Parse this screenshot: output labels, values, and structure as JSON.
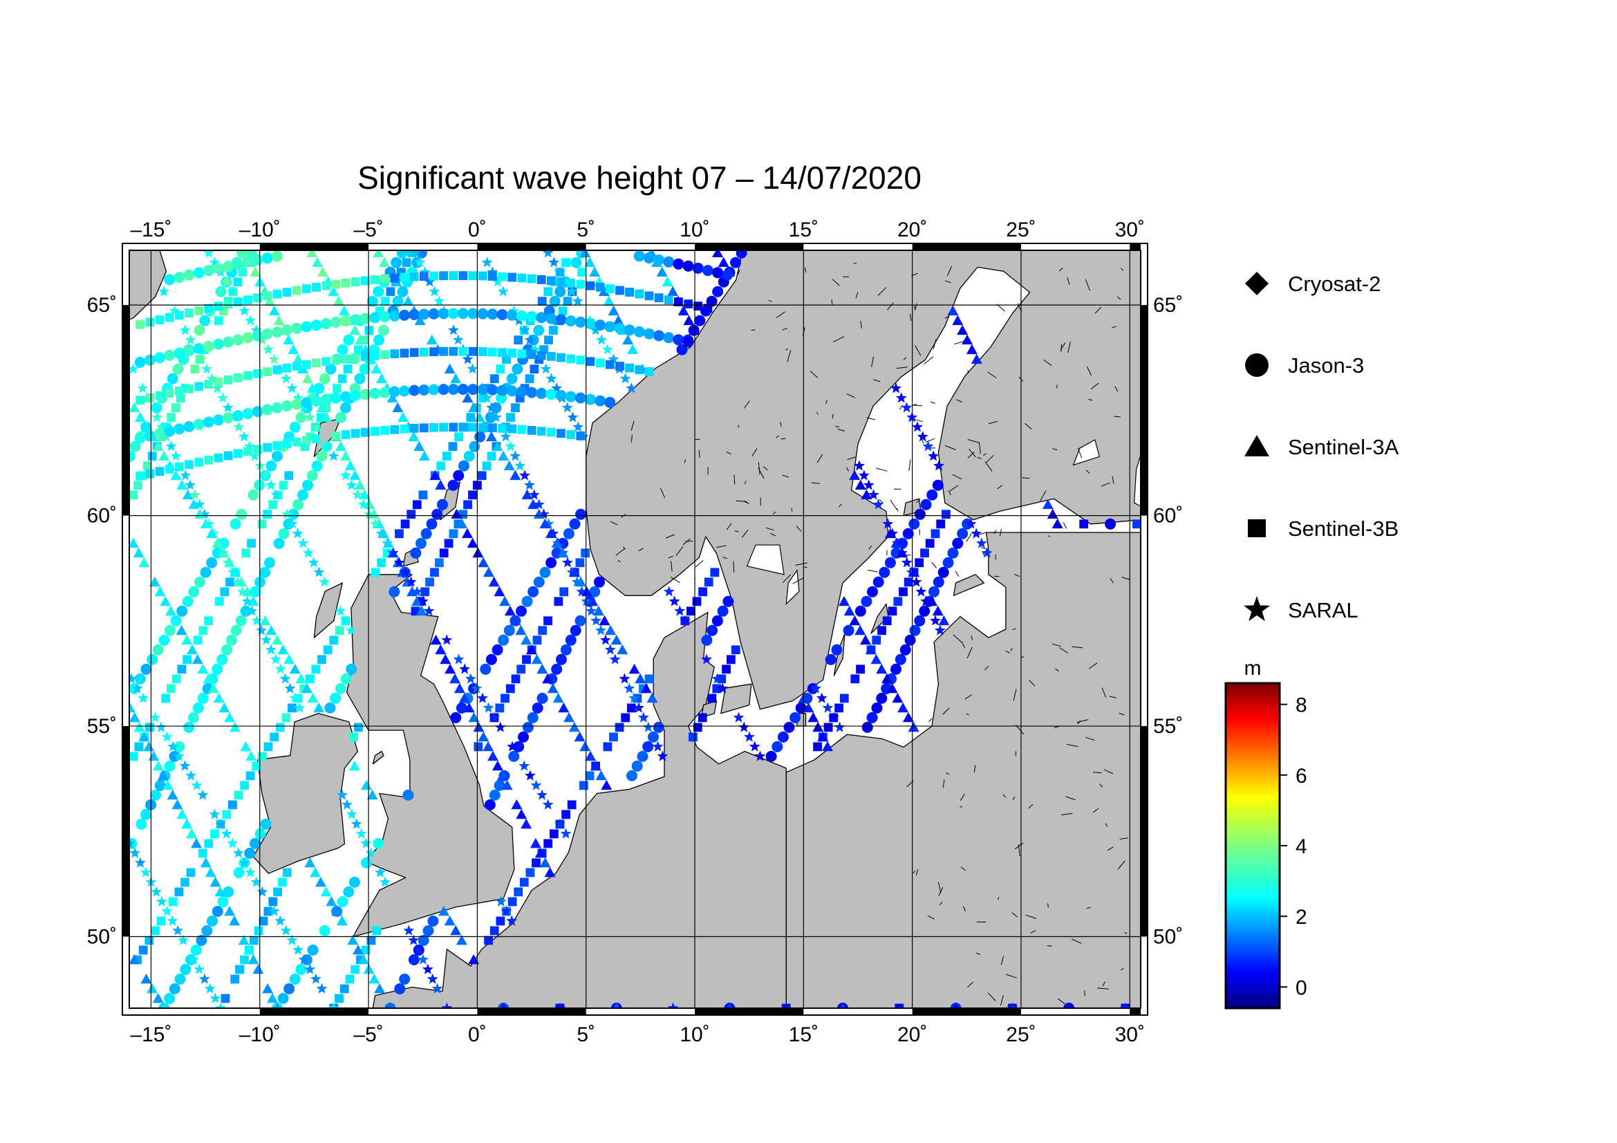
{
  "title": "Significant wave height 07 – 14/07/2020",
  "colors": {
    "land": "#bebebe",
    "sea": "#ffffff",
    "grid": "#000000"
  },
  "map": {
    "lon_range": [
      -16,
      30.5
    ],
    "lat_range": [
      48.3,
      66.3
    ],
    "lon_ticks": [
      -15,
      -10,
      -5,
      0,
      5,
      10,
      15,
      20,
      25,
      30
    ],
    "lat_ticks": [
      50,
      55,
      60,
      65
    ],
    "lon_labels": [
      "–15˚",
      "–10˚",
      "–5˚",
      "0˚",
      "5˚",
      "10˚",
      "15˚",
      "20˚",
      "25˚",
      "30˚"
    ],
    "lat_labels": [
      "50˚",
      "55˚",
      "60˚",
      "65˚"
    ]
  },
  "legend": [
    {
      "label": "Cryosat-2",
      "symbol": "diamond-icon"
    },
    {
      "label": "Jason-3",
      "symbol": "circle-icon"
    },
    {
      "label": "Sentinel-3A",
      "symbol": "triangle-icon"
    },
    {
      "label": "Sentinel-3B",
      "symbol": "square-icon"
    },
    {
      "label": "SARAL",
      "symbol": "star-icon"
    }
  ],
  "colorbar": {
    "unit": "m",
    "min": -0.6,
    "max": 8.6,
    "ticks": [
      0,
      2,
      4,
      6,
      8
    ],
    "tick_labels": [
      "0",
      "2",
      "4",
      "6",
      "8"
    ]
  }
}
